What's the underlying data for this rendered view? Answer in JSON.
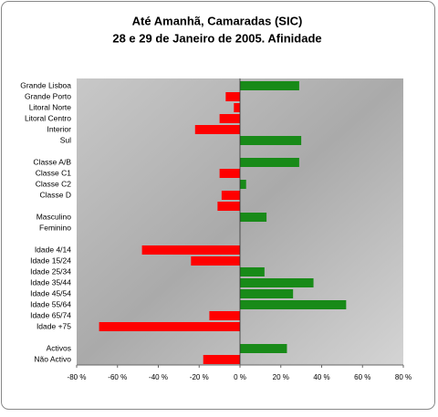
{
  "chart_data": {
    "type": "bar",
    "orientation": "horizontal",
    "title": "Até Amanhã, Camaradas (SIC)",
    "subtitle": "28 e 29 de Janeiro de 2005. Afinidade",
    "categories": [
      "Grande Lisboa",
      "Grande Porto",
      "Litoral Norte",
      "Litoral Centro",
      "Interior",
      "Sul",
      null,
      "Classe A/B",
      "Classe C1",
      "Classe C2",
      "Classe D",
      null,
      "Masculino",
      "Feminino",
      null,
      "Idade 4/14",
      "Idade 15/24",
      "Idade 25/34",
      "Idade 35/44",
      "Idade 45/54",
      "Idade 55/64",
      "Idade 65/74",
      "Idade +75",
      null,
      "Activos",
      "Não Activo"
    ],
    "values": [
      29,
      -7,
      -3,
      -10,
      -22,
      30,
      null,
      29,
      -10,
      3,
      -9,
      -11,
      13,
      null,
      null,
      -48,
      -24,
      12,
      36,
      26,
      52,
      -15,
      -69,
      null,
      23,
      -18
    ],
    "positive_color": "#188a18",
    "negative_color": "#ff0000",
    "xlim": [
      -80,
      80
    ],
    "xticks": [
      {
        "value": -80,
        "label": "-80 %"
      },
      {
        "value": -60,
        "label": "-60 %"
      },
      {
        "value": -40,
        "label": "-40 %"
      },
      {
        "value": -20,
        "label": "-20 %"
      },
      {
        "value": 0,
        "label": "0 %"
      },
      {
        "value": 20,
        "label": "20 %"
      },
      {
        "value": 40,
        "label": "40 %"
      },
      {
        "value": 60,
        "label": "60 %"
      },
      {
        "value": 80,
        "label": "80 %"
      }
    ]
  }
}
